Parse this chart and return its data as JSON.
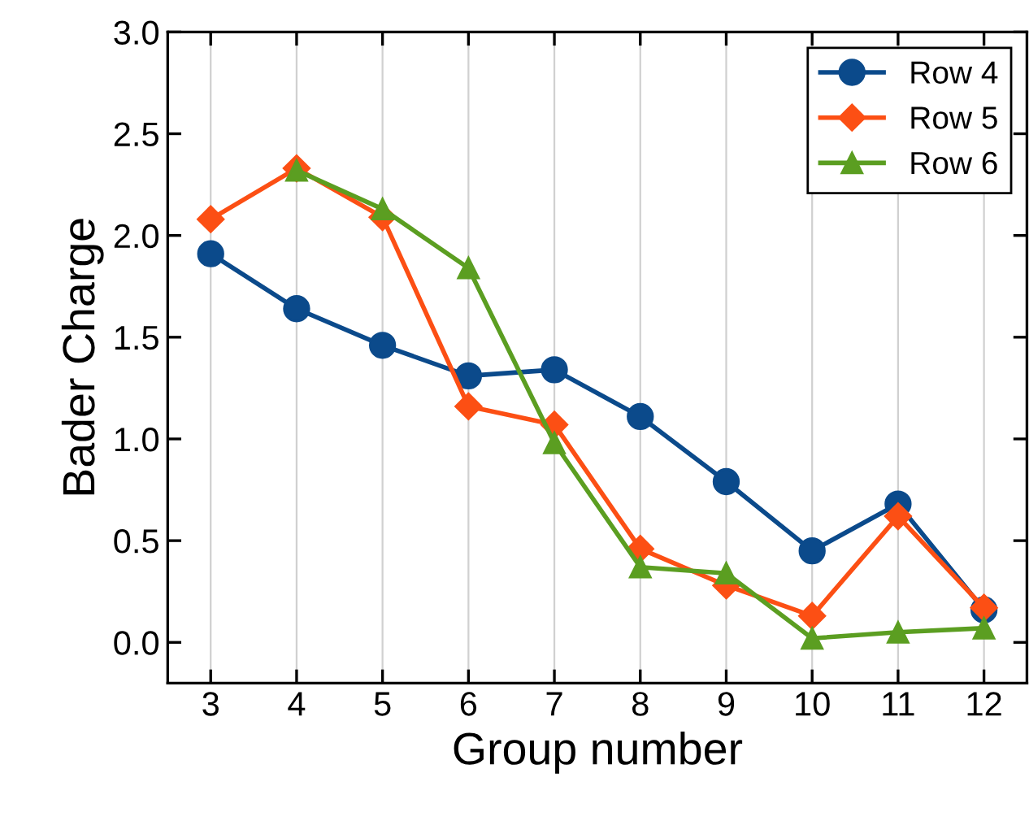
{
  "chart_data": {
    "type": "line",
    "xlabel": "Group number",
    "ylabel": "Bader Charge",
    "x": [
      3,
      4,
      5,
      6,
      7,
      8,
      9,
      10,
      11,
      12
    ],
    "series": [
      {
        "name": "Row 4",
        "color": "#0b4a8b",
        "marker": "circle",
        "values": [
          1.91,
          1.64,
          1.46,
          1.31,
          1.34,
          1.11,
          0.79,
          0.45,
          0.68,
          0.16
        ]
      },
      {
        "name": "Row 5",
        "color": "#fc4f14",
        "marker": "diamond",
        "values": [
          2.08,
          2.33,
          2.09,
          1.16,
          1.07,
          0.46,
          0.28,
          0.13,
          0.62,
          0.17
        ]
      },
      {
        "name": "Row 6",
        "color": "#5b9e21",
        "marker": "triangle",
        "values": [
          null,
          2.32,
          2.13,
          1.84,
          0.98,
          0.37,
          0.34,
          0.02,
          0.05,
          0.07
        ]
      }
    ],
    "xlim": [
      2.5,
      12.5
    ],
    "ylim": [
      -0.2,
      3.0
    ],
    "xticks": [
      3,
      4,
      5,
      6,
      7,
      8,
      9,
      10,
      11,
      12
    ],
    "yticks": [
      {
        "value": 0,
        "label": "0.0"
      },
      0.5,
      {
        "value": 1,
        "label": "1.0"
      },
      1.5,
      {
        "value": 2,
        "label": "2.0"
      },
      2.5,
      {
        "value": 3,
        "label": "3.0"
      }
    ],
    "grid": "x",
    "legend": "top right",
    "line_style": "solid"
  }
}
